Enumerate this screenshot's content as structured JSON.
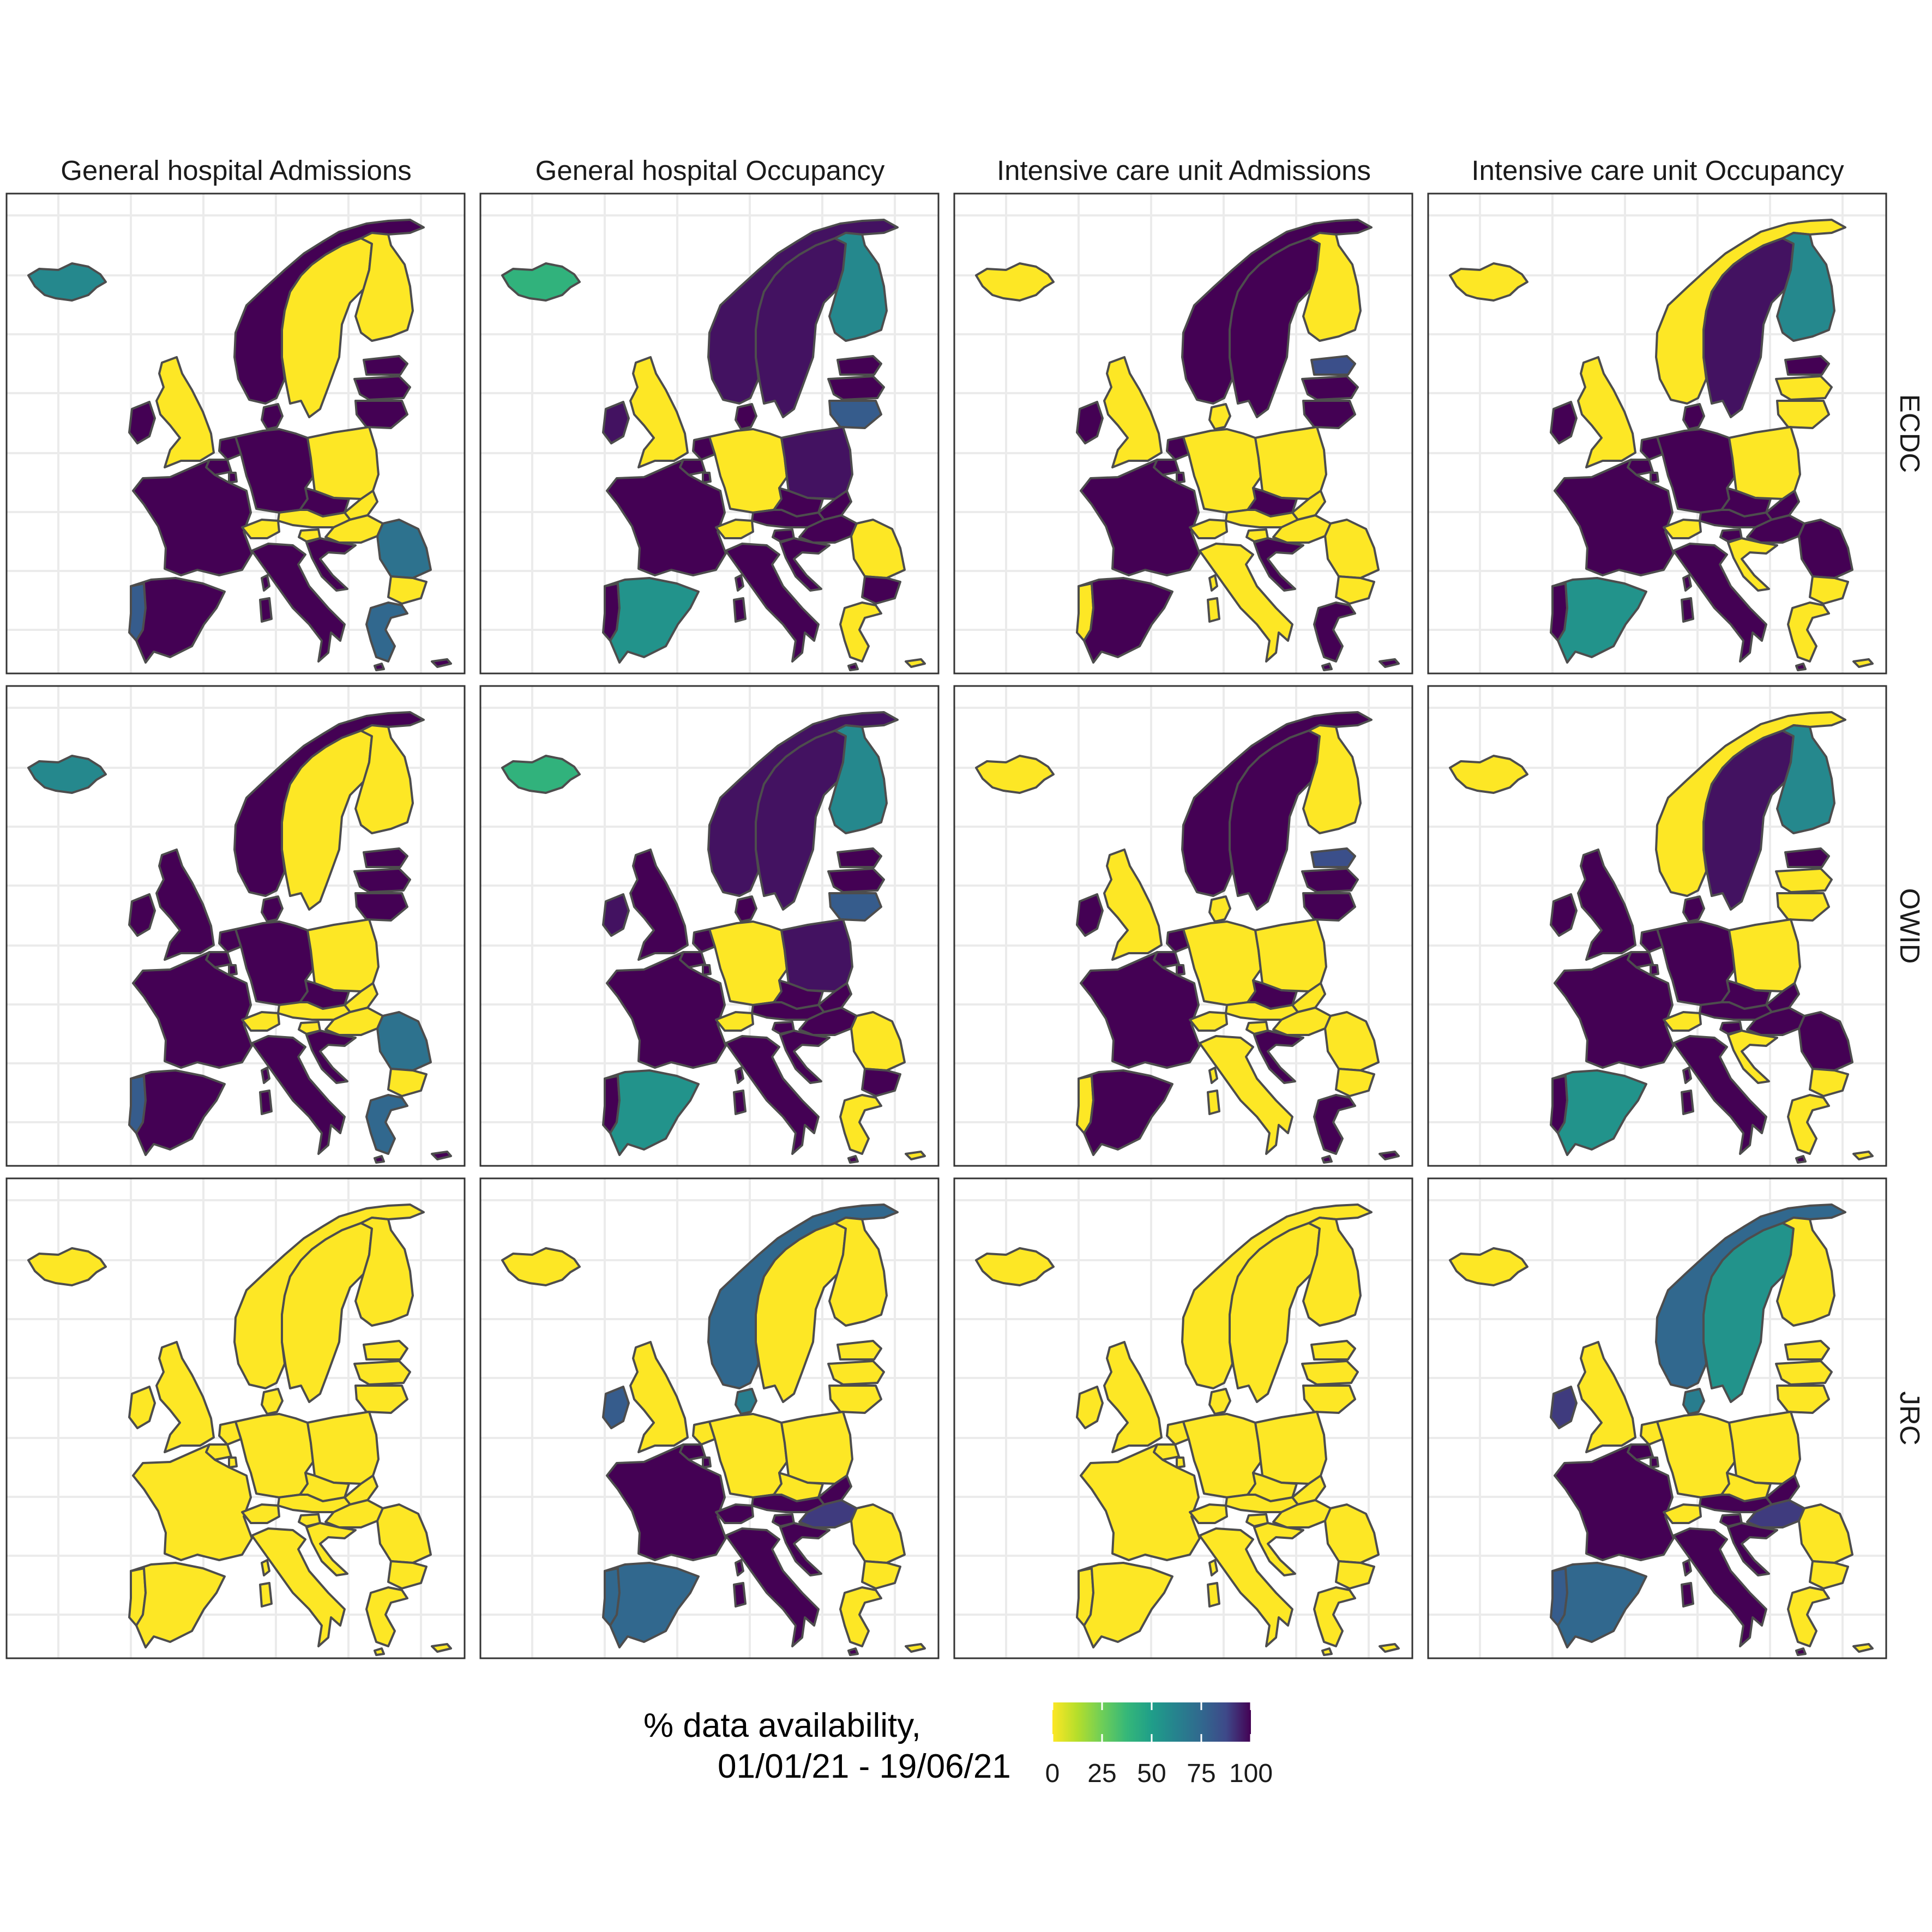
{
  "facets": {
    "columns": [
      "General hospital Admissions",
      "General hospital Occupancy",
      "Intensive care unit Admissions",
      "Intensive care unit Occupancy"
    ],
    "rows": [
      "ECDC",
      "OWID",
      "JRC"
    ]
  },
  "legend": {
    "title_line1": "% data availability,",
    "title_line2": "01/01/21 - 19/06/21",
    "ticks": [
      "0",
      "25",
      "50",
      "75",
      "100"
    ],
    "scale": "viridis (reversed)",
    "colors": [
      "#fde725",
      "#5ec962",
      "#21918c",
      "#3b528b",
      "#440154"
    ]
  },
  "chart_data": {
    "type": "choropleth map grid",
    "value_unit": "% data availability",
    "value_range": [
      0,
      100
    ],
    "regions": [
      "iceland",
      "norway",
      "sweden",
      "finland",
      "estonia",
      "latvia",
      "lithuania",
      "ireland",
      "uk",
      "denmark",
      "netherlands",
      "belgium",
      "luxembourg",
      "france",
      "germany",
      "poland",
      "czechia",
      "slovakia",
      "austria",
      "switzerland",
      "slovenia",
      "hungary",
      "croatia",
      "romania",
      "bulgaria",
      "greece",
      "portugal",
      "spain",
      "italy",
      "corsica",
      "sardinia",
      "cyprus",
      "malta"
    ],
    "panels": [
      {
        "row": "ECDC",
        "column": "General hospital Admissions",
        "values": {
          "iceland": 60,
          "norway": 100,
          "sweden": 0,
          "finland": 0,
          "estonia": 100,
          "latvia": 100,
          "lithuania": 100,
          "ireland": 100,
          "uk": 0,
          "denmark": 100,
          "netherlands": 100,
          "belgium": 100,
          "luxembourg": 100,
          "france": 100,
          "germany": 100,
          "poland": 0,
          "czechia": 100,
          "slovakia": 0,
          "austria": 0,
          "switzerland": 0,
          "slovenia": 0,
          "hungary": 0,
          "croatia": 100,
          "romania": 70,
          "bulgaria": 0,
          "greece": 75,
          "portugal": 80,
          "spain": 100,
          "italy": 100,
          "corsica": 100,
          "sardinia": 100,
          "cyprus": 100,
          "malta": 100
        }
      },
      {
        "row": "ECDC",
        "column": "General hospital Occupancy",
        "values": {
          "iceland": 40,
          "norway": 97,
          "sweden": 97,
          "finland": 60,
          "estonia": 100,
          "latvia": 100,
          "lithuania": 80,
          "ireland": 97,
          "uk": 0,
          "denmark": 100,
          "netherlands": 100,
          "belgium": 100,
          "luxembourg": 100,
          "france": 100,
          "germany": 0,
          "poland": 97,
          "czechia": 100,
          "slovakia": 100,
          "austria": 100,
          "switzerland": 0,
          "slovenia": 100,
          "hungary": 100,
          "croatia": 100,
          "romania": 0,
          "bulgaria": 100,
          "greece": 0,
          "portugal": 100,
          "spain": 55,
          "italy": 100,
          "corsica": 100,
          "sardinia": 100,
          "cyprus": 0,
          "malta": 100
        }
      },
      {
        "row": "ECDC",
        "column": "Intensive care unit Admissions",
        "values": {
          "iceland": 0,
          "norway": 100,
          "sweden": 100,
          "finland": 0,
          "estonia": 85,
          "latvia": 100,
          "lithuania": 100,
          "ireland": 100,
          "uk": 0,
          "denmark": 0,
          "netherlands": 100,
          "belgium": 100,
          "luxembourg": 100,
          "france": 100,
          "germany": 0,
          "poland": 0,
          "czechia": 100,
          "slovakia": 0,
          "austria": 0,
          "switzerland": 0,
          "slovenia": 0,
          "hungary": 0,
          "croatia": 100,
          "romania": 0,
          "bulgaria": 0,
          "greece": 100,
          "portugal": 0,
          "spain": 100,
          "italy": 0,
          "corsica": 0,
          "sardinia": 0,
          "cyprus": 100,
          "malta": 100
        }
      },
      {
        "row": "ECDC",
        "column": "Intensive care unit Occupancy",
        "values": {
          "iceland": 0,
          "norway": 0,
          "sweden": 97,
          "finland": 60,
          "estonia": 100,
          "latvia": 0,
          "lithuania": 0,
          "ireland": 100,
          "uk": 0,
          "denmark": 100,
          "netherlands": 100,
          "belgium": 100,
          "luxembourg": 100,
          "france": 100,
          "germany": 100,
          "poland": 0,
          "czechia": 100,
          "slovakia": 100,
          "austria": 100,
          "switzerland": 0,
          "slovenia": 100,
          "hungary": 100,
          "croatia": 0,
          "romania": 100,
          "bulgaria": 0,
          "greece": 0,
          "portugal": 100,
          "spain": 55,
          "italy": 100,
          "corsica": 100,
          "sardinia": 100,
          "cyprus": 0,
          "malta": 100
        }
      },
      {
        "row": "OWID",
        "column": "General hospital Admissions",
        "values": {
          "iceland": 60,
          "norway": 100,
          "sweden": 0,
          "finland": 0,
          "estonia": 100,
          "latvia": 100,
          "lithuania": 100,
          "ireland": 100,
          "uk": 100,
          "denmark": 100,
          "netherlands": 100,
          "belgium": 100,
          "luxembourg": 100,
          "france": 100,
          "germany": 100,
          "poland": 0,
          "czechia": 100,
          "slovakia": 0,
          "austria": 0,
          "switzerland": 0,
          "slovenia": 0,
          "hungary": 0,
          "croatia": 100,
          "romania": 70,
          "bulgaria": 0,
          "greece": 75,
          "portugal": 80,
          "spain": 100,
          "italy": 100,
          "corsica": 100,
          "sardinia": 100,
          "cyprus": 100,
          "malta": 100
        }
      },
      {
        "row": "OWID",
        "column": "General hospital Occupancy",
        "values": {
          "iceland": 40,
          "norway": 97,
          "sweden": 97,
          "finland": 60,
          "estonia": 100,
          "latvia": 100,
          "lithuania": 80,
          "ireland": 97,
          "uk": 100,
          "denmark": 100,
          "netherlands": 100,
          "belgium": 100,
          "luxembourg": 100,
          "france": 100,
          "germany": 0,
          "poland": 97,
          "czechia": 100,
          "slovakia": 100,
          "austria": 100,
          "switzerland": 0,
          "slovenia": 100,
          "hungary": 100,
          "croatia": 100,
          "romania": 0,
          "bulgaria": 100,
          "greece": 0,
          "portugal": 100,
          "spain": 55,
          "italy": 100,
          "corsica": 100,
          "sardinia": 100,
          "cyprus": 0,
          "malta": 100
        }
      },
      {
        "row": "OWID",
        "column": "Intensive care unit Admissions",
        "values": {
          "iceland": 0,
          "norway": 100,
          "sweden": 100,
          "finland": 0,
          "estonia": 85,
          "latvia": 100,
          "lithuania": 100,
          "ireland": 100,
          "uk": 0,
          "denmark": 0,
          "netherlands": 100,
          "belgium": 100,
          "luxembourg": 100,
          "france": 100,
          "germany": 0,
          "poland": 0,
          "czechia": 100,
          "slovakia": 0,
          "austria": 0,
          "switzerland": 0,
          "slovenia": 0,
          "hungary": 0,
          "croatia": 100,
          "romania": 0,
          "bulgaria": 0,
          "greece": 100,
          "portugal": 0,
          "spain": 100,
          "italy": 0,
          "corsica": 0,
          "sardinia": 0,
          "cyprus": 100,
          "malta": 100
        }
      },
      {
        "row": "OWID",
        "column": "Intensive care unit Occupancy",
        "values": {
          "iceland": 0,
          "norway": 0,
          "sweden": 97,
          "finland": 60,
          "estonia": 100,
          "latvia": 0,
          "lithuania": 0,
          "ireland": 100,
          "uk": 100,
          "denmark": 100,
          "netherlands": 100,
          "belgium": 100,
          "luxembourg": 100,
          "france": 100,
          "germany": 100,
          "poland": 0,
          "czechia": 100,
          "slovakia": 100,
          "austria": 100,
          "switzerland": 0,
          "slovenia": 100,
          "hungary": 100,
          "croatia": 0,
          "romania": 100,
          "bulgaria": 0,
          "greece": 0,
          "portugal": 100,
          "spain": 55,
          "italy": 100,
          "corsica": 100,
          "sardinia": 100,
          "cyprus": 0,
          "malta": 100
        }
      },
      {
        "row": "JRC",
        "column": "General hospital Admissions",
        "values": {
          "iceland": 0,
          "norway": 0,
          "sweden": 0,
          "finland": 0,
          "estonia": 0,
          "latvia": 0,
          "lithuania": 0,
          "ireland": 0,
          "uk": 0,
          "denmark": 0,
          "netherlands": 0,
          "belgium": 0,
          "luxembourg": 0,
          "france": 0,
          "germany": 0,
          "poland": 0,
          "czechia": 0,
          "slovakia": 0,
          "austria": 0,
          "switzerland": 0,
          "slovenia": 0,
          "hungary": 0,
          "croatia": 0,
          "romania": 0,
          "bulgaria": 0,
          "greece": 0,
          "portugal": 0,
          "spain": 0,
          "italy": 0,
          "corsica": 0,
          "sardinia": 0,
          "cyprus": 0,
          "malta": 0
        }
      },
      {
        "row": "JRC",
        "column": "General hospital Occupancy",
        "values": {
          "iceland": 0,
          "norway": 75,
          "sweden": 0,
          "finland": 0,
          "estonia": 0,
          "latvia": 0,
          "lithuania": 0,
          "ireland": 80,
          "uk": 0,
          "denmark": 65,
          "netherlands": 0,
          "belgium": 100,
          "luxembourg": 100,
          "france": 100,
          "germany": 0,
          "poland": 0,
          "czechia": 0,
          "slovakia": 100,
          "austria": 100,
          "switzerland": 100,
          "slovenia": 100,
          "hungary": 90,
          "croatia": 100,
          "romania": 0,
          "bulgaria": 0,
          "greece": 0,
          "portugal": 75,
          "spain": 75,
          "italy": 100,
          "corsica": 100,
          "sardinia": 100,
          "cyprus": 0,
          "malta": 100
        }
      },
      {
        "row": "JRC",
        "column": "Intensive care unit Admissions",
        "values": {
          "iceland": 0,
          "norway": 0,
          "sweden": 0,
          "finland": 0,
          "estonia": 0,
          "latvia": 0,
          "lithuania": 0,
          "ireland": 0,
          "uk": 0,
          "denmark": 0,
          "netherlands": 0,
          "belgium": 0,
          "luxembourg": 0,
          "france": 0,
          "germany": 0,
          "poland": 0,
          "czechia": 0,
          "slovakia": 0,
          "austria": 0,
          "switzerland": 0,
          "slovenia": 0,
          "hungary": 0,
          "croatia": 0,
          "romania": 0,
          "bulgaria": 0,
          "greece": 0,
          "portugal": 0,
          "spain": 0,
          "italy": 0,
          "corsica": 0,
          "sardinia": 0,
          "cyprus": 0,
          "malta": 0
        }
      },
      {
        "row": "JRC",
        "column": "Intensive care unit Occupancy",
        "values": {
          "iceland": 0,
          "norway": 75,
          "sweden": 55,
          "finland": 0,
          "estonia": 0,
          "latvia": 0,
          "lithuania": 0,
          "ireland": 90,
          "uk": 0,
          "denmark": 65,
          "netherlands": 0,
          "belgium": 100,
          "luxembourg": 100,
          "france": 100,
          "germany": 0,
          "poland": 0,
          "czechia": 0,
          "slovakia": 100,
          "austria": 100,
          "switzerland": 0,
          "slovenia": 100,
          "hungary": 90,
          "croatia": 100,
          "romania": 0,
          "bulgaria": 0,
          "greece": 0,
          "portugal": 80,
          "spain": 75,
          "italy": 100,
          "corsica": 100,
          "sardinia": 100,
          "cyprus": 0,
          "malta": 100
        }
      }
    ]
  }
}
